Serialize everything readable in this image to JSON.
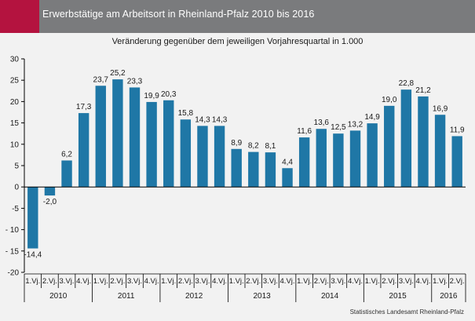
{
  "header": {
    "title": "Erwerbstätige am Arbeitsort in Rheinland-Pfalz 2010 bis 2016",
    "accent_color": "#b4133f",
    "bar_color": "#7a7b7d"
  },
  "footer": {
    "source": "Statistisches Landesamt Rheinland-Pfalz"
  },
  "chart_data": {
    "type": "bar",
    "title": "",
    "subtitle": "Veränderung gegenüber dem jeweiligen Vorjahresquartal in 1.000",
    "xlabel": "",
    "ylabel": "",
    "ylim": [
      -20,
      30
    ],
    "yticks": [
      -20,
      -15,
      -10,
      -5,
      0,
      5,
      10,
      15,
      20,
      25,
      30
    ],
    "ytick_labels": [
      "-20",
      "- 15",
      "- 10",
      "-5",
      "0",
      "5",
      "10",
      "15",
      "20",
      "25",
      "30"
    ],
    "grid": false,
    "bar_color": "#1f77a6",
    "categories": [
      "1.Vj.",
      "2.Vj.",
      "3.Vj.",
      "4.Vj.",
      "1.Vj.",
      "2.Vj.",
      "3.Vj.",
      "4.Vj.",
      "1.Vj.",
      "2.Vj.",
      "3.Vj.",
      "4.Vj.",
      "1.Vj.",
      "2.Vj.",
      "3.Vj.",
      "4.Vj.",
      "1.Vj.",
      "2.Vj.",
      "3.Vj.",
      "4.Vj.",
      "1.Vj.",
      "2.Vj.",
      "3.Vj.",
      "4.Vj.",
      "1.Vj.",
      "2.Vj."
    ],
    "years": [
      "2010",
      "2011",
      "2012",
      "2013",
      "2014",
      "2015",
      "2016"
    ],
    "values": [
      -14.4,
      -2.0,
      6.2,
      17.3,
      23.7,
      25.2,
      23.3,
      19.9,
      20.3,
      15.8,
      14.3,
      14.3,
      8.9,
      8.2,
      8.1,
      4.4,
      11.6,
      13.6,
      12.5,
      13.2,
      14.9,
      19.0,
      22.8,
      21.2,
      16.9,
      11.9
    ],
    "data_labels": [
      "-14,4",
      "-2,0",
      "6,2",
      "17,3",
      "23,7",
      "25,2",
      "23,3",
      "19,9",
      "20,3",
      "15,8",
      "14,3",
      "14,3",
      "8,9",
      "8,2",
      "8,1",
      "4,4",
      "11,6",
      "13,6",
      "12,5",
      "13,2",
      "14,9",
      "19,0",
      "22,8",
      "21,2",
      "16,9",
      "11,9"
    ]
  }
}
